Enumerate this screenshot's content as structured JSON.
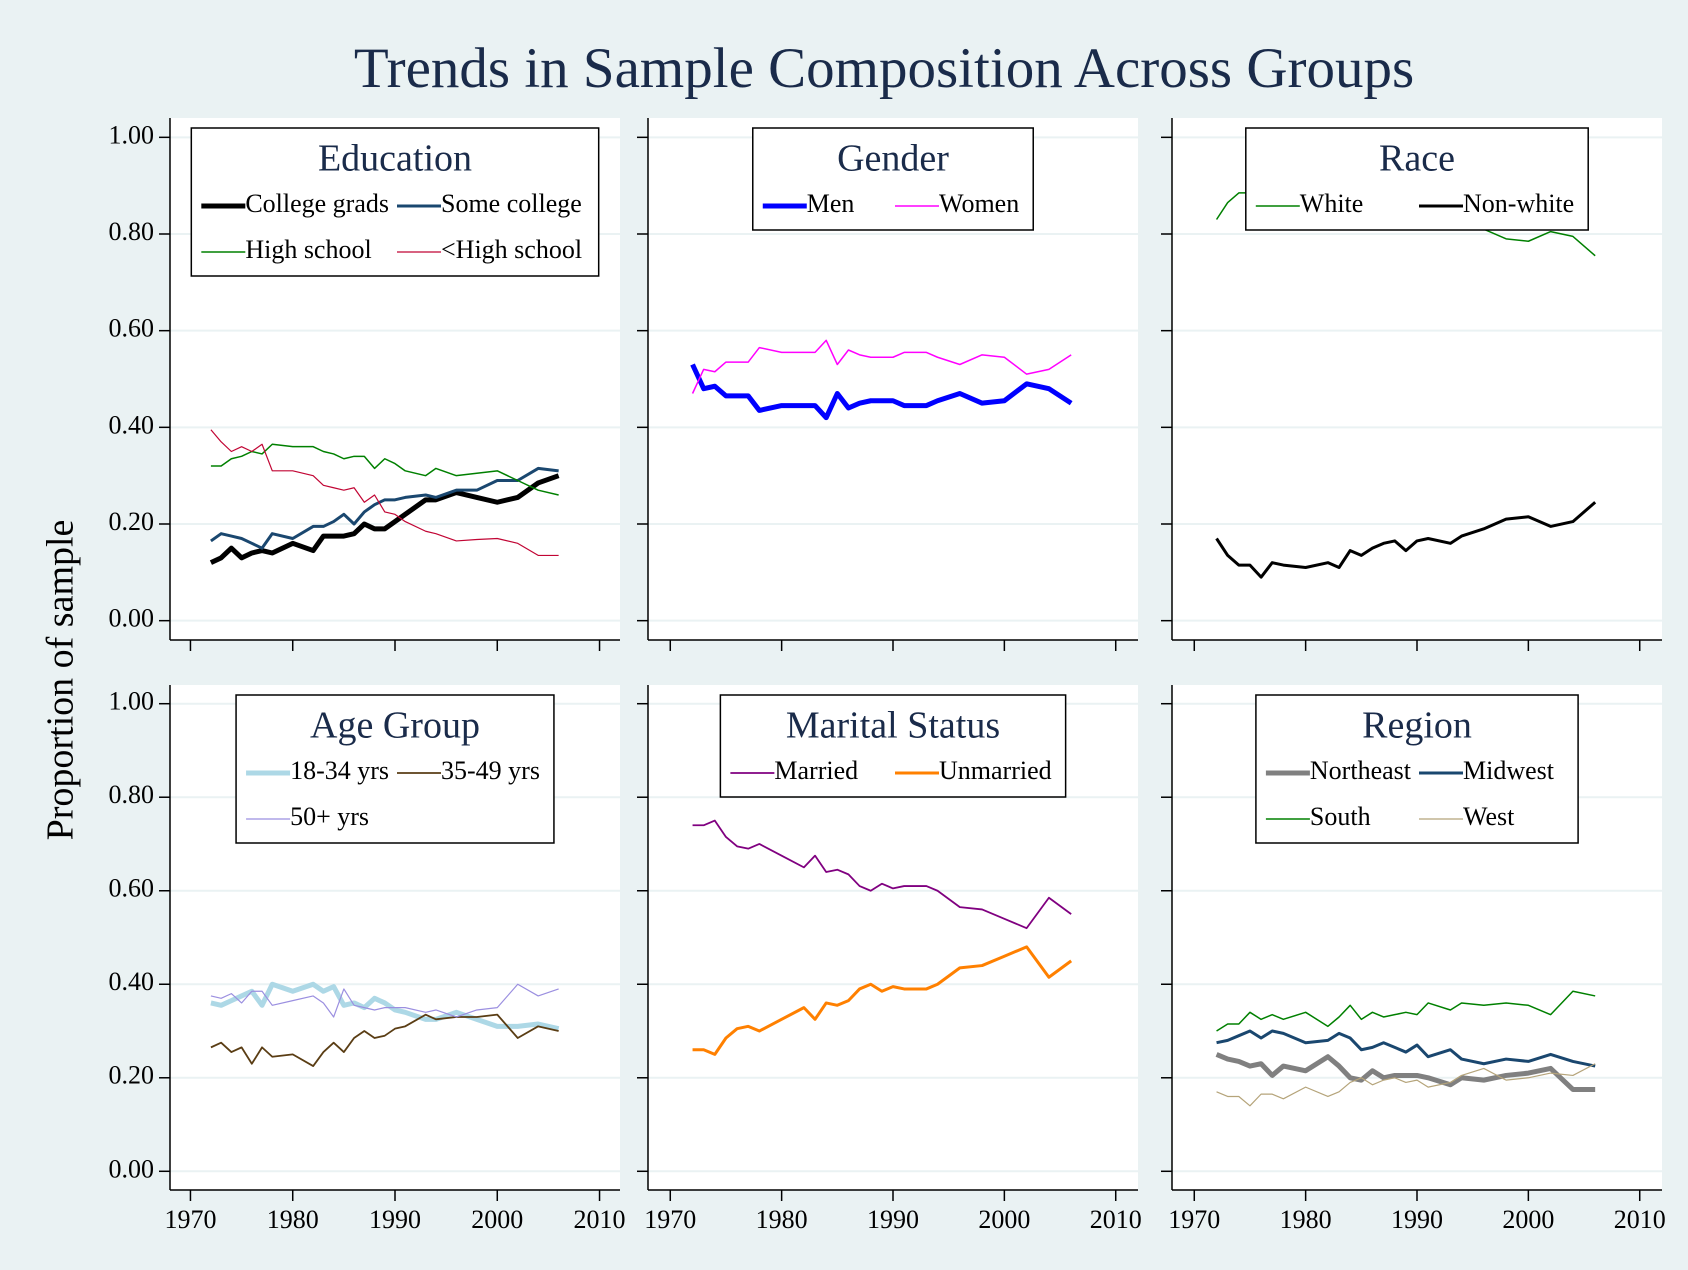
{
  "title": "Trends in Sample Composition Across Groups",
  "ylabel": "Proportion of sample",
  "chart_data": [
    {
      "type": "line",
      "title": "Education",
      "grid": true,
      "legend": "top",
      "x": [
        1972,
        1973,
        1974,
        1975,
        1976,
        1977,
        1978,
        1980,
        1982,
        1983,
        1984,
        1985,
        1986,
        1987,
        1988,
        1989,
        1990,
        1991,
        1993,
        1994,
        1996,
        1998,
        2000,
        2002,
        2004,
        2006
      ],
      "xlim": [
        1968,
        2012
      ],
      "xticks": [
        1970,
        1980,
        1990,
        2000,
        2010
      ],
      "ylim": [
        -0.04,
        1.04
      ],
      "yticks": [
        {
          "value": 0,
          "label": "0.00"
        },
        {
          "value": 0.2,
          "label": "0.20"
        },
        {
          "value": 0.4,
          "label": "0.40"
        },
        {
          "value": 0.6,
          "label": "0.60"
        },
        {
          "value": 0.8,
          "label": "0.80"
        },
        {
          "value": 1,
          "label": "1.00"
        }
      ],
      "series": [
        {
          "name": "College grads",
          "color": "#000000",
          "width": 5,
          "values": [
            0.12,
            0.13,
            0.15,
            0.13,
            0.14,
            0.145,
            0.14,
            0.16,
            0.145,
            0.175,
            0.175,
            0.175,
            0.18,
            0.2,
            0.19,
            0.19,
            0.205,
            0.22,
            0.25,
            0.25,
            0.265,
            0.255,
            0.245,
            0.255,
            0.285,
            0.3
          ]
        },
        {
          "name": "Some college",
          "color": "#1a476f",
          "width": 3,
          "values": [
            0.165,
            0.18,
            0.175,
            0.17,
            0.16,
            0.15,
            0.18,
            0.17,
            0.195,
            0.195,
            0.205,
            0.22,
            0.2,
            0.225,
            0.24,
            0.25,
            0.25,
            0.255,
            0.26,
            0.255,
            0.27,
            0.27,
            0.29,
            0.29,
            0.315,
            0.31
          ]
        },
        {
          "name": "High school",
          "color": "#008000",
          "width": 1.5,
          "values": [
            0.32,
            0.32,
            0.335,
            0.34,
            0.35,
            0.345,
            0.365,
            0.36,
            0.36,
            0.35,
            0.345,
            0.335,
            0.34,
            0.34,
            0.315,
            0.335,
            0.325,
            0.31,
            0.3,
            0.315,
            0.3,
            0.305,
            0.31,
            0.29,
            0.27,
            0.26
          ]
        },
        {
          "name": "<High school",
          "color": "#c10534",
          "width": 1.2,
          "values": [
            0.395,
            0.37,
            0.35,
            0.36,
            0.35,
            0.365,
            0.31,
            0.31,
            0.3,
            0.28,
            0.275,
            0.27,
            0.275,
            0.245,
            0.26,
            0.225,
            0.22,
            0.205,
            0.185,
            0.18,
            0.165,
            0.168,
            0.17,
            0.16,
            0.135,
            0.135
          ]
        }
      ]
    },
    {
      "type": "line",
      "title": "Gender",
      "grid": true,
      "legend": "top",
      "x": [
        1972,
        1973,
        1974,
        1975,
        1976,
        1977,
        1978,
        1980,
        1982,
        1983,
        1984,
        1985,
        1986,
        1987,
        1988,
        1989,
        1990,
        1991,
        1993,
        1994,
        1996,
        1998,
        2000,
        2002,
        2004,
        2006
      ],
      "xlim": [
        1968,
        2012
      ],
      "xticks": [
        1970,
        1980,
        1990,
        2000,
        2010
      ],
      "ylim": [
        -0.04,
        1.04
      ],
      "yticks": [
        0,
        0.2,
        0.4,
        0.6,
        0.8,
        1
      ],
      "series": [
        {
          "name": "Men",
          "color": "#0000ff",
          "width": 5,
          "values": [
            0.53,
            0.48,
            0.485,
            0.465,
            0.465,
            0.465,
            0.435,
            0.445,
            0.445,
            0.445,
            0.42,
            0.47,
            0.44,
            0.45,
            0.455,
            0.455,
            0.455,
            0.445,
            0.445,
            0.455,
            0.47,
            0.45,
            0.455,
            0.49,
            0.48,
            0.45
          ]
        },
        {
          "name": "Women",
          "color": "#ff00ff",
          "width": 1.5,
          "values": [
            0.47,
            0.52,
            0.515,
            0.535,
            0.535,
            0.535,
            0.565,
            0.555,
            0.555,
            0.555,
            0.58,
            0.53,
            0.56,
            0.55,
            0.545,
            0.545,
            0.545,
            0.555,
            0.555,
            0.545,
            0.53,
            0.55,
            0.545,
            0.51,
            0.52,
            0.55
          ]
        }
      ]
    },
    {
      "type": "line",
      "title": "Race",
      "grid": true,
      "legend": "top",
      "x": [
        1972,
        1973,
        1974,
        1975,
        1976,
        1977,
        1978,
        1980,
        1982,
        1983,
        1984,
        1985,
        1986,
        1987,
        1988,
        1989,
        1990,
        1991,
        1993,
        1994,
        1996,
        1998,
        2000,
        2002,
        2004,
        2006
      ],
      "xlim": [
        1968,
        2012
      ],
      "xticks": [
        1970,
        1980,
        1990,
        2000,
        2010
      ],
      "ylim": [
        -0.04,
        1.04
      ],
      "yticks": [
        0,
        0.2,
        0.4,
        0.6,
        0.8,
        1
      ],
      "series": [
        {
          "name": "White",
          "color": "#008000",
          "width": 1.5,
          "values": [
            0.83,
            0.865,
            0.885,
            0.885,
            0.91,
            0.88,
            0.885,
            0.89,
            0.88,
            0.89,
            0.855,
            0.865,
            0.85,
            0.84,
            0.835,
            0.855,
            0.835,
            0.83,
            0.84,
            0.825,
            0.81,
            0.79,
            0.785,
            0.805,
            0.795,
            0.755
          ]
        },
        {
          "name": "Non-white",
          "color": "#000000",
          "width": 3,
          "values": [
            0.17,
            0.135,
            0.115,
            0.115,
            0.09,
            0.12,
            0.115,
            0.11,
            0.12,
            0.11,
            0.145,
            0.135,
            0.15,
            0.16,
            0.165,
            0.145,
            0.165,
            0.17,
            0.16,
            0.175,
            0.19,
            0.21,
            0.215,
            0.195,
            0.205,
            0.245
          ]
        }
      ]
    },
    {
      "type": "line",
      "title": "Age Group",
      "grid": true,
      "legend": "top",
      "x": [
        1972,
        1973,
        1974,
        1975,
        1976,
        1977,
        1978,
        1980,
        1982,
        1983,
        1984,
        1985,
        1986,
        1987,
        1988,
        1989,
        1990,
        1991,
        1993,
        1994,
        1996,
        1998,
        2000,
        2002,
        2004,
        2006
      ],
      "xlim": [
        1968,
        2012
      ],
      "xticks": [
        1970,
        1980,
        1990,
        2000,
        2010
      ],
      "ylim": [
        -0.04,
        1.04
      ],
      "yticks": [
        {
          "value": 0,
          "label": "0.00"
        },
        {
          "value": 0.2,
          "label": "0.20"
        },
        {
          "value": 0.4,
          "label": "0.40"
        },
        {
          "value": 0.6,
          "label": "0.60"
        },
        {
          "value": 0.8,
          "label": "0.80"
        },
        {
          "value": 1,
          "label": "1.00"
        }
      ],
      "series": [
        {
          "name": "18-34 yrs",
          "color": "#add8e6",
          "width": 5,
          "values": [
            0.36,
            0.355,
            0.365,
            0.375,
            0.385,
            0.355,
            0.4,
            0.385,
            0.4,
            0.385,
            0.395,
            0.355,
            0.36,
            0.35,
            0.37,
            0.36,
            0.345,
            0.34,
            0.325,
            0.325,
            0.34,
            0.325,
            0.31,
            0.31,
            0.315,
            0.305
          ]
        },
        {
          "name": "35-49 yrs",
          "color": "#5a3d14",
          "width": 1.8,
          "values": [
            0.265,
            0.275,
            0.255,
            0.265,
            0.23,
            0.265,
            0.245,
            0.25,
            0.225,
            0.255,
            0.275,
            0.255,
            0.285,
            0.3,
            0.285,
            0.29,
            0.305,
            0.31,
            0.335,
            0.325,
            0.33,
            0.33,
            0.335,
            0.285,
            0.31,
            0.3
          ]
        },
        {
          "name": "50+ yrs",
          "color": "#9b8fe0",
          "width": 1.2,
          "values": [
            0.375,
            0.37,
            0.38,
            0.36,
            0.385,
            0.385,
            0.355,
            0.365,
            0.375,
            0.36,
            0.33,
            0.39,
            0.355,
            0.35,
            0.345,
            0.35,
            0.35,
            0.35,
            0.34,
            0.345,
            0.33,
            0.345,
            0.35,
            0.4,
            0.375,
            0.39
          ]
        }
      ]
    },
    {
      "type": "line",
      "title": "Marital Status",
      "grid": true,
      "legend": "top",
      "x": [
        1972,
        1973,
        1974,
        1975,
        1976,
        1977,
        1978,
        1980,
        1982,
        1983,
        1984,
        1985,
        1986,
        1987,
        1988,
        1989,
        1990,
        1991,
        1993,
        1994,
        1996,
        1998,
        2000,
        2002,
        2004,
        2006
      ],
      "xlim": [
        1968,
        2012
      ],
      "xticks": [
        1970,
        1980,
        1990,
        2000,
        2010
      ],
      "ylim": [
        -0.04,
        1.04
      ],
      "yticks": [
        0,
        0.2,
        0.4,
        0.6,
        0.8,
        1
      ],
      "series": [
        {
          "name": "Married",
          "color": "#800080",
          "width": 1.8,
          "values": [
            0.74,
            0.74,
            0.75,
            0.715,
            0.695,
            0.69,
            0.7,
            0.675,
            0.65,
            0.675,
            0.64,
            0.645,
            0.635,
            0.61,
            0.6,
            0.615,
            0.605,
            0.61,
            0.61,
            0.6,
            0.565,
            0.56,
            0.54,
            0.52,
            0.585,
            0.55
          ]
        },
        {
          "name": "Unmarried",
          "color": "#ff8000",
          "width": 3,
          "values": [
            0.26,
            0.26,
            0.25,
            0.285,
            0.305,
            0.31,
            0.3,
            0.325,
            0.35,
            0.325,
            0.36,
            0.355,
            0.365,
            0.39,
            0.4,
            0.385,
            0.395,
            0.39,
            0.39,
            0.4,
            0.435,
            0.44,
            0.46,
            0.48,
            0.415,
            0.45
          ]
        }
      ]
    },
    {
      "type": "line",
      "title": "Region",
      "grid": true,
      "legend": "top",
      "x": [
        1972,
        1973,
        1974,
        1975,
        1976,
        1977,
        1978,
        1980,
        1982,
        1983,
        1984,
        1985,
        1986,
        1987,
        1988,
        1989,
        1990,
        1991,
        1993,
        1994,
        1996,
        1998,
        2000,
        2002,
        2004,
        2006
      ],
      "xlim": [
        1968,
        2012
      ],
      "xticks": [
        1970,
        1980,
        1990,
        2000,
        2010
      ],
      "ylim": [
        -0.04,
        1.04
      ],
      "yticks": [
        0,
        0.2,
        0.4,
        0.6,
        0.8,
        1
      ],
      "series": [
        {
          "name": "Northeast",
          "color": "#808080",
          "width": 5,
          "values": [
            0.25,
            0.24,
            0.235,
            0.225,
            0.23,
            0.205,
            0.225,
            0.215,
            0.245,
            0.225,
            0.2,
            0.195,
            0.215,
            0.2,
            0.205,
            0.205,
            0.205,
            0.2,
            0.185,
            0.2,
            0.195,
            0.205,
            0.21,
            0.22,
            0.175,
            0.175
          ]
        },
        {
          "name": "Midwest",
          "color": "#1a476f",
          "width": 3,
          "values": [
            0.275,
            0.28,
            0.29,
            0.3,
            0.285,
            0.3,
            0.295,
            0.275,
            0.28,
            0.295,
            0.285,
            0.26,
            0.265,
            0.275,
            0.265,
            0.255,
            0.27,
            0.245,
            0.26,
            0.24,
            0.23,
            0.24,
            0.235,
            0.25,
            0.235,
            0.225
          ]
        },
        {
          "name": "South",
          "color": "#008000",
          "width": 1.5,
          "values": [
            0.3,
            0.315,
            0.315,
            0.34,
            0.325,
            0.335,
            0.325,
            0.34,
            0.31,
            0.33,
            0.355,
            0.325,
            0.34,
            0.33,
            0.335,
            0.34,
            0.335,
            0.36,
            0.345,
            0.36,
            0.355,
            0.36,
            0.355,
            0.335,
            0.385,
            0.375
          ]
        },
        {
          "name": "West",
          "color": "#b5a47a",
          "width": 1.2,
          "values": [
            0.17,
            0.16,
            0.16,
            0.14,
            0.165,
            0.165,
            0.155,
            0.18,
            0.16,
            0.17,
            0.19,
            0.2,
            0.185,
            0.195,
            0.2,
            0.19,
            0.195,
            0.18,
            0.19,
            0.205,
            0.22,
            0.195,
            0.2,
            0.21,
            0.205,
            0.23
          ]
        }
      ]
    }
  ]
}
